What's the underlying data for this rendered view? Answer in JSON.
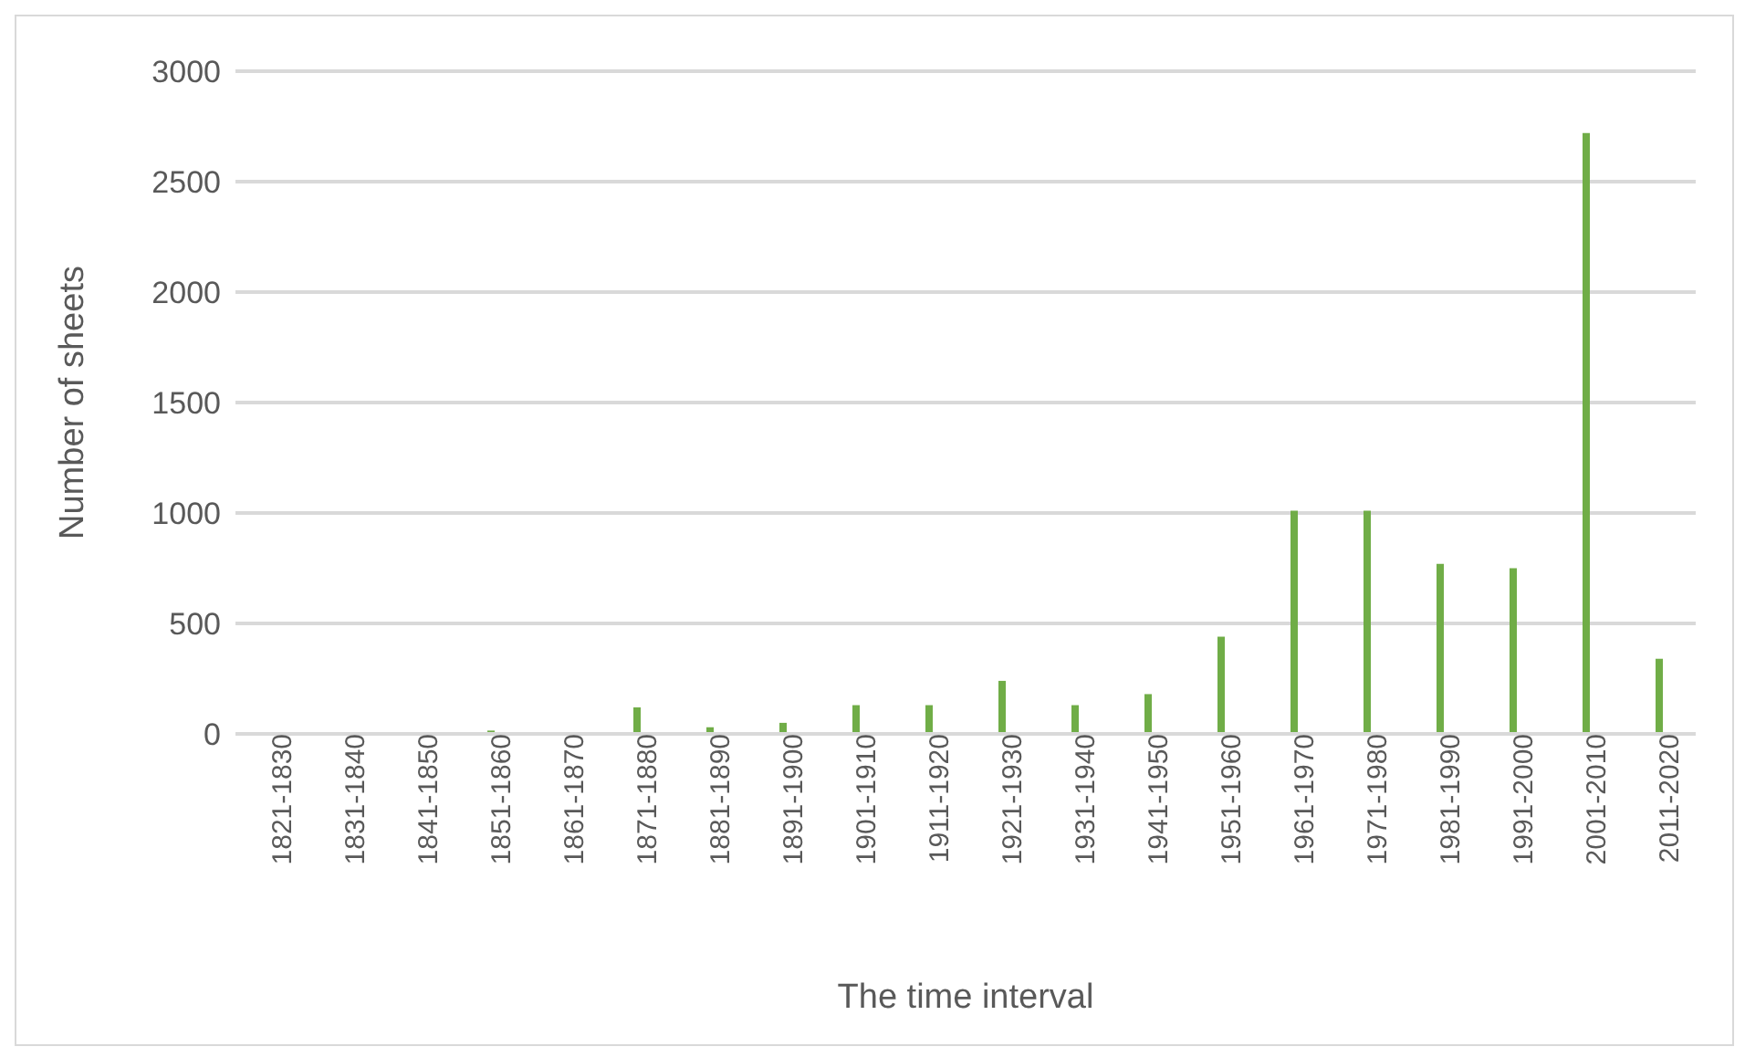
{
  "chart_data": {
    "type": "bar",
    "xlabel": "The time interval",
    "ylabel": "Number of sheets",
    "categories": [
      "1821-1830",
      "1831-1840",
      "1841-1850",
      "1851-1860",
      "1861-1870",
      "1871-1880",
      "1881-1890",
      "1891-1900",
      "1901-1910",
      "1911-1920",
      "1921-1930",
      "1931-1940",
      "1941-1950",
      "1951-1960",
      "1961-1970",
      "1971-1980",
      "1981-1990",
      "1991-2000",
      "2001-2010",
      "2011-2020"
    ],
    "values": [
      0,
      0,
      0,
      15,
      0,
      120,
      30,
      50,
      130,
      130,
      240,
      130,
      180,
      440,
      1010,
      1010,
      770,
      750,
      2720,
      340
    ],
    "color": "#70ad47",
    "ylim": [
      0,
      3000
    ],
    "yticks": [
      0,
      500,
      1000,
      1500,
      2000,
      2500,
      3000
    ],
    "grid": "y"
  }
}
